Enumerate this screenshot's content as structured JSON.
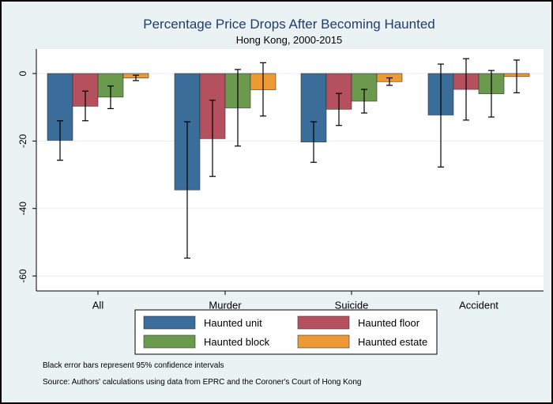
{
  "chart_data": {
    "type": "bar",
    "title": "Percentage Price Drops After Becoming Haunted",
    "subtitle": "Hong Kong, 2000-2015",
    "xlabel": "",
    "ylabel": "",
    "ylim": [
      -61,
      7
    ],
    "yticks": [
      0,
      -20,
      -40,
      -60
    ],
    "grid": true,
    "categories": [
      "All",
      "Murder",
      "Suicide",
      "Accident"
    ],
    "series": [
      {
        "name": "Haunted unit",
        "color": "#3b6d9a",
        "values": [
          -19.8,
          -34.5,
          -20.3,
          -12.3
        ],
        "ci_low": [
          -25.7,
          -54.7,
          -26.3,
          -27.7
        ],
        "ci_high": [
          -14.0,
          -14.3,
          -14.3,
          2.8
        ]
      },
      {
        "name": "Haunted floor",
        "color": "#b5515f",
        "values": [
          -9.7,
          -19.3,
          -10.6,
          -4.7
        ],
        "ci_low": [
          -14.0,
          -30.5,
          -15.4,
          -13.8
        ],
        "ci_high": [
          -5.2,
          -7.9,
          -5.9,
          4.4
        ]
      },
      {
        "name": "Haunted block",
        "color": "#6b9a4e",
        "values": [
          -7.0,
          -10.2,
          -8.2,
          -6.0
        ],
        "ci_low": [
          -10.4,
          -21.5,
          -11.7,
          -12.9
        ],
        "ci_high": [
          -3.7,
          1.2,
          -4.7,
          0.9
        ]
      },
      {
        "name": "Haunted estate",
        "color": "#ed9a34",
        "values": [
          -1.3,
          -4.8,
          -2.4,
          -0.9
        ],
        "ci_low": [
          -2.1,
          -12.6,
          -3.5,
          -5.7
        ],
        "ci_high": [
          -0.5,
          3.2,
          -1.3,
          4.0
        ]
      }
    ],
    "legend": {
      "placement": "bottom"
    },
    "notes": [
      "Black error bars represent 95% confidence intervals",
      "Source: Authors' calculations using data from EPRC and the Coroner's Court of Hong Kong"
    ]
  }
}
